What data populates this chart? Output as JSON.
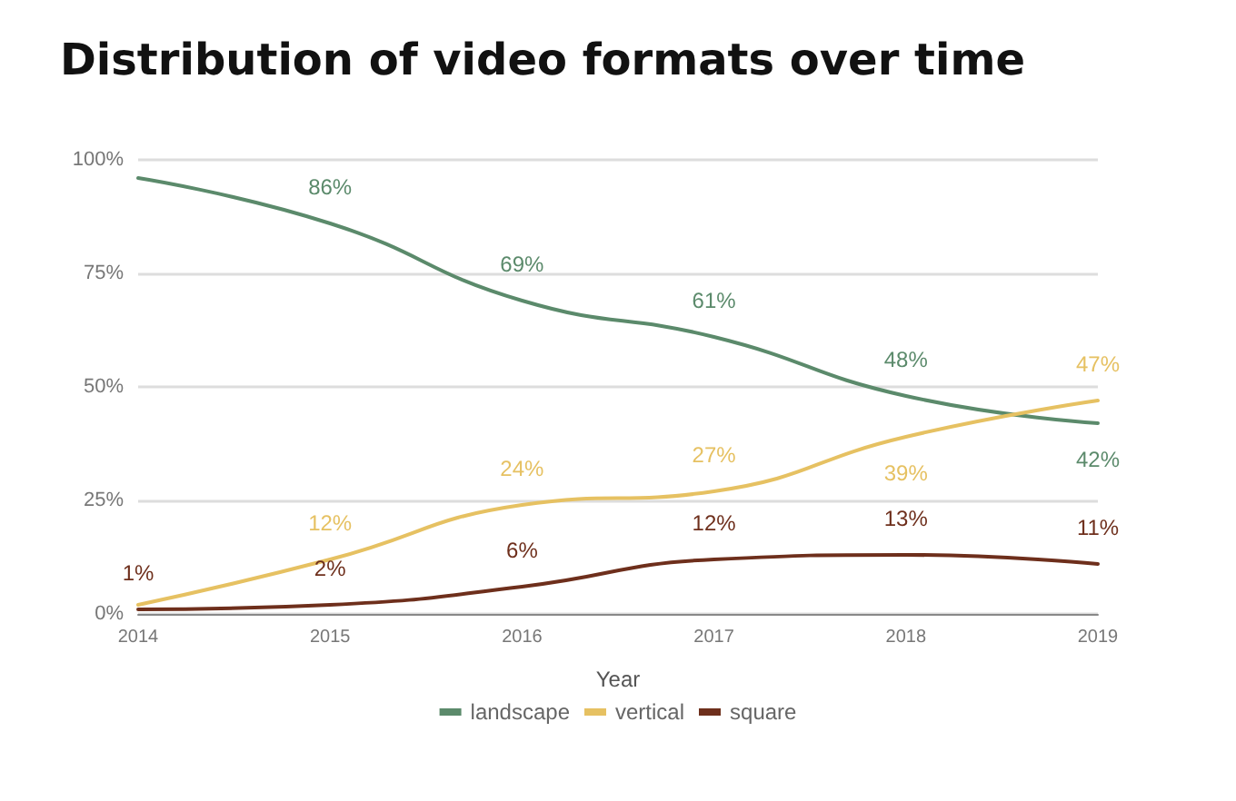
{
  "chart_data": {
    "type": "line",
    "title": "Distribution of video formats over time",
    "xlabel": "Year",
    "categories": [
      "2014",
      "2015",
      "2016",
      "2017",
      "2018",
      "2019"
    ],
    "series": [
      {
        "name": "landscape",
        "color": "#5b8a6b",
        "values": [
          96,
          86,
          69,
          61,
          48,
          42
        ],
        "value_labels": [
          null,
          "86%",
          "69%",
          "61%",
          "48%",
          "42%"
        ]
      },
      {
        "name": "vertical",
        "color": "#e6c162",
        "values": [
          2,
          12,
          24,
          27,
          39,
          47
        ],
        "value_labels": [
          null,
          "12%",
          "24%",
          "27%",
          "39%",
          "47%"
        ]
      },
      {
        "name": "square",
        "color": "#6e2f1c",
        "values": [
          1,
          2,
          6,
          12,
          13,
          11
        ],
        "value_labels": [
          "1%",
          "2%",
          "6%",
          "12%",
          "13%",
          "11%"
        ]
      }
    ],
    "ylim": [
      0,
      100
    ],
    "yticks": [
      {
        "value": 0,
        "label": "0%"
      },
      {
        "value": 25,
        "label": "25%"
      },
      {
        "value": 50,
        "label": "50%"
      },
      {
        "value": 75,
        "label": "75%"
      },
      {
        "value": 100,
        "label": "100%"
      }
    ],
    "grid": "y",
    "legend": "bottom",
    "marker": "none",
    "line_style": "solid"
  }
}
